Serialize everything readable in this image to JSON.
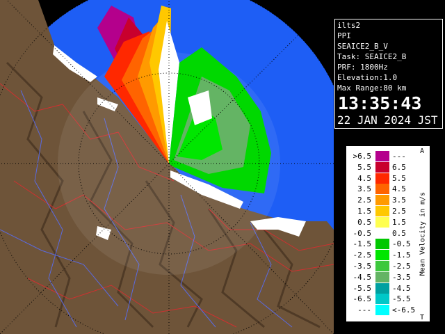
{
  "info": {
    "site": "ilts2",
    "mode": "PPI",
    "product": "SEAICE2_B_V",
    "task": "Task: SEAICE2_B",
    "prf": "PRF: 1800Hz",
    "elevation": "Elevation:1.0",
    "range": "Max Range:80 km",
    "time": "13:35:43",
    "date": "22 JAN 2024 JST"
  },
  "legend": {
    "title": "Mean Velocity in m/s",
    "top_mark": "A",
    "bottom_mark": "T",
    "rows": [
      {
        "low": ">6.5",
        "high": "---",
        "color": "#b4008c"
      },
      {
        "low": "5.5",
        "high": "6.5",
        "color": "#c8002d"
      },
      {
        "low": "4.5",
        "high": "5.5",
        "color": "#ff2800"
      },
      {
        "low": "3.5",
        "high": "4.5",
        "color": "#ff6400"
      },
      {
        "low": "2.5",
        "high": "3.5",
        "color": "#ff9a00"
      },
      {
        "low": "1.5",
        "high": "2.5",
        "color": "#ffc800"
      },
      {
        "low": "0.5",
        "high": "1.5",
        "color": "#ffff50"
      },
      {
        "low": "-0.5",
        "high": "0.5",
        "color": "#ffffff"
      },
      {
        "low": "-1.5",
        "high": "-0.5",
        "color": "#00c800"
      },
      {
        "low": "-2.5",
        "high": "-1.5",
        "color": "#00e600"
      },
      {
        "low": "-3.5",
        "high": "-2.5",
        "color": "#3cc83c"
      },
      {
        "low": "-4.5",
        "high": "-3.5",
        "color": "#64b464"
      },
      {
        "low": "-5.5",
        "high": "-4.5",
        "color": "#00a0a0"
      },
      {
        "low": "-6.5",
        "high": "-5.5",
        "color": "#00c8c8"
      },
      {
        "low": "---",
        "high": "<-6.5",
        "color": "#00ffff"
      }
    ]
  }
}
